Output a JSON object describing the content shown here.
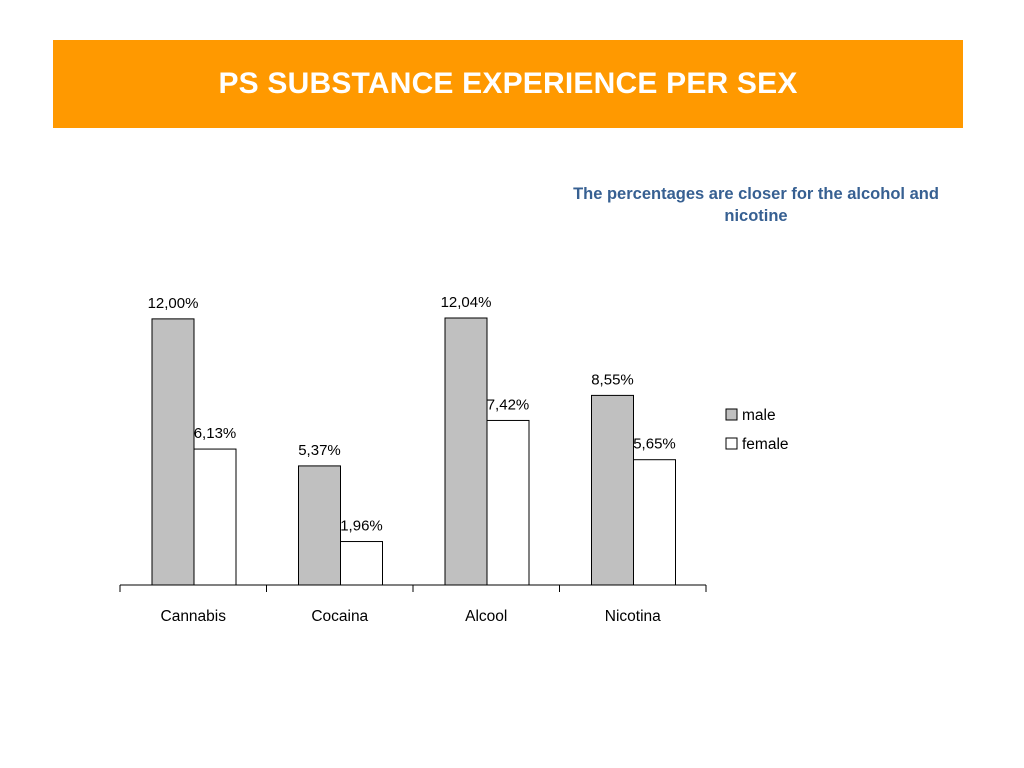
{
  "slide": {
    "title": "PS SUBSTANCE EXPERIENCE PER SEX",
    "subtitle": "The percentages are closer for the alcohol and nicotine"
  },
  "colors": {
    "banner": "#FF9900",
    "title_text": "#FFFFFF",
    "subtitle_text": "#376092",
    "male_fill": "#C0C0C0",
    "female_fill": "#FFFFFF",
    "bar_stroke": "#000000"
  },
  "chart_data": {
    "type": "bar",
    "categories": [
      "Cannabis",
      "Cocaina",
      "Alcool",
      "Nicotina"
    ],
    "series": [
      {
        "name": "male",
        "values": [
          12.0,
          5.37,
          12.04,
          8.55
        ],
        "labels": [
          "12,00%",
          "5,37%",
          "12,04%",
          "8,55%"
        ]
      },
      {
        "name": "female",
        "values": [
          6.13,
          1.96,
          7.42,
          5.65
        ],
        "labels": [
          "6,13%",
          "1,96%",
          "7,42%",
          "5,65%"
        ]
      }
    ],
    "ylim": [
      0,
      12.04
    ],
    "grid": false,
    "legend_position": "right"
  }
}
